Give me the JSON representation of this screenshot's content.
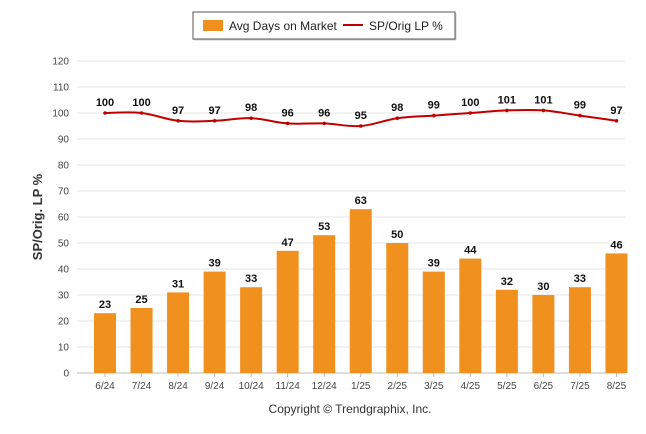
{
  "chart_data": {
    "type": "bar",
    "categories": [
      "6/24",
      "7/24",
      "8/24",
      "9/24",
      "10/24",
      "11/24",
      "12/24",
      "1/25",
      "2/25",
      "3/25",
      "4/25",
      "5/25",
      "6/25",
      "7/25",
      "8/25"
    ],
    "series": [
      {
        "name": "Avg Days on Market",
        "type": "bar",
        "color": "#F0901E",
        "values": [
          23,
          25,
          31,
          39,
          33,
          47,
          53,
          63,
          50,
          39,
          44,
          32,
          30,
          33,
          46
        ]
      },
      {
        "name": "SP/Orig LP %",
        "type": "line",
        "color": "#C00000",
        "values": [
          100,
          100,
          97,
          97,
          98,
          96,
          96,
          95,
          98,
          99,
          100,
          101,
          101,
          99,
          97
        ]
      }
    ],
    "ylabel": "SP/Orig. LP %",
    "ylim": [
      0,
      120
    ],
    "yticks": [
      0,
      10,
      20,
      30,
      40,
      50,
      60,
      70,
      80,
      90,
      100,
      110,
      120
    ],
    "grid": true,
    "legend_position": "top-center"
  },
  "credit": "Copyright © Trendgraphix, Inc."
}
